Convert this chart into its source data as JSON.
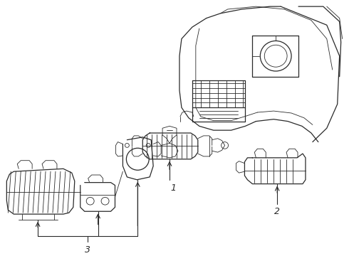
{
  "bg_color": "#ffffff",
  "line_color": "#2a2a2a",
  "fig_width": 4.9,
  "fig_height": 3.6,
  "dpi": 100,
  "label_1": "1",
  "label_2": "2",
  "label_3": "3",
  "label_fontsize": 9
}
